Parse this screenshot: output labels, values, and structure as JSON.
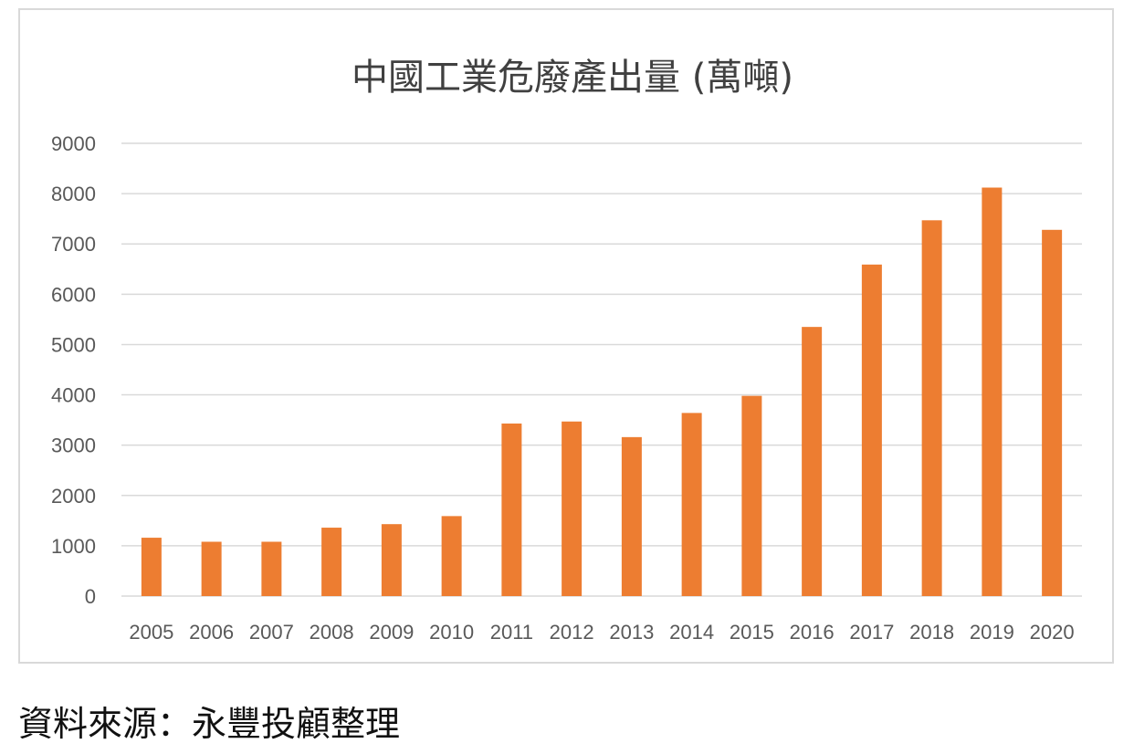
{
  "chart_data": {
    "type": "bar",
    "title": "中國工業危廢產出量 (萬噸)",
    "categories": [
      "2005",
      "2006",
      "2007",
      "2008",
      "2009",
      "2010",
      "2011",
      "2012",
      "2013",
      "2014",
      "2015",
      "2016",
      "2017",
      "2018",
      "2019",
      "2020"
    ],
    "values": [
      1160,
      1080,
      1080,
      1360,
      1430,
      1590,
      3430,
      3470,
      3160,
      3640,
      3980,
      5350,
      6590,
      7470,
      8120,
      7280
    ],
    "ylim": [
      0,
      9000
    ],
    "yticks": [
      0,
      1000,
      2000,
      3000,
      4000,
      5000,
      6000,
      7000,
      8000,
      9000
    ],
    "xlabel": "",
    "ylabel": "",
    "grid": true,
    "colors": {
      "bar": "#ED7D31",
      "grid": "#D9D9D9",
      "tick_text": "#595959",
      "title": "#404040"
    }
  },
  "footer": {
    "source": "資料來源：永豐投顧整理"
  }
}
